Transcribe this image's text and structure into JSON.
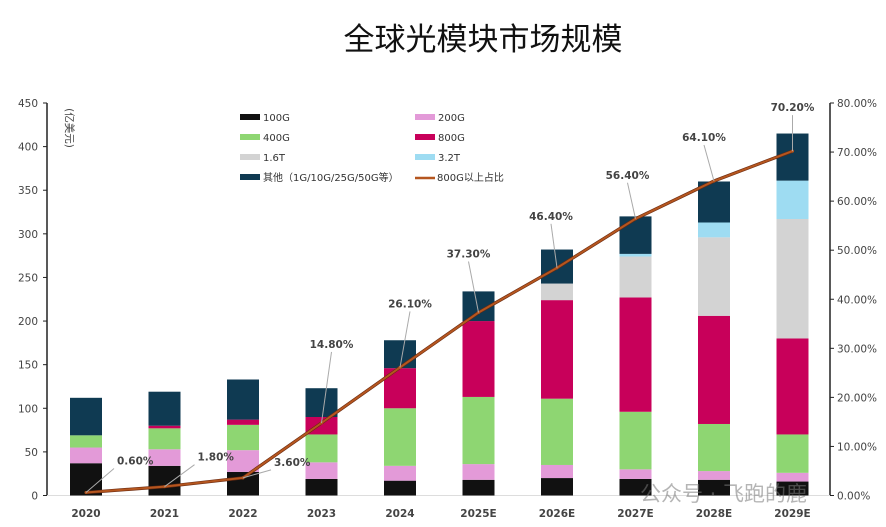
{
  "title": "全球光模块市场规模",
  "watermark": "公众号 · 飞跑的鹿",
  "chart_data": {
    "type": "bar",
    "stacked": true,
    "title": "全球光模块市场规模",
    "ylabel": "(亿美元)",
    "ylim": [
      0,
      450
    ],
    "yticks": [
      0,
      50,
      100,
      150,
      200,
      250,
      300,
      350,
      400,
      450
    ],
    "y2lim": [
      0,
      80
    ],
    "y2ticks": [
      "0.00%",
      "10.00%",
      "20.00%",
      "30.00%",
      "40.00%",
      "50.00%",
      "60.00%",
      "70.00%",
      "80.00%"
    ],
    "categories": [
      "2020",
      "2021",
      "2022",
      "2023",
      "2024",
      "2025E",
      "2026E",
      "2027E",
      "2028E",
      "2029E"
    ],
    "series": [
      {
        "name": "100G",
        "color": "#111111",
        "values": [
          37,
          34,
          27,
          19,
          17,
          18,
          20,
          19,
          18,
          16
        ]
      },
      {
        "name": "200G",
        "color": "#e39ad8",
        "values": [
          18,
          19,
          25,
          19,
          17,
          18,
          15,
          11,
          10,
          10
        ]
      },
      {
        "name": "400G",
        "color": "#8ed672",
        "values": [
          14,
          24,
          29,
          32,
          66,
          77,
          76,
          66,
          54,
          44
        ]
      },
      {
        "name": "800G",
        "color": "#c8005a",
        "values": [
          0,
          3,
          6,
          20,
          46,
          87,
          113,
          131,
          124,
          110
        ]
      },
      {
        "name": "1.6T",
        "color": "#d3d3d3",
        "values": [
          0,
          0,
          0,
          0,
          0,
          0,
          19,
          47,
          90,
          137
        ]
      },
      {
        "name": "3.2T",
        "color": "#9edcf2",
        "values": [
          0,
          0,
          0,
          0,
          0,
          0,
          0,
          3,
          17,
          44
        ]
      },
      {
        "name": "其他（1G/10G/25G/50G等）",
        "color": "#0f3a52",
        "values": [
          43,
          39,
          46,
          33,
          32,
          34,
          39,
          43,
          47,
          54
        ]
      }
    ],
    "line": {
      "name": "800G以上占比",
      "color": "#b5561f",
      "axis": "right",
      "values": [
        0.6,
        1.8,
        3.6,
        14.8,
        26.1,
        37.3,
        46.4,
        56.4,
        64.1,
        70.2
      ],
      "labels": [
        "0.60%",
        "1.80%",
        "3.60%",
        "14.80%",
        "26.10%",
        "37.30%",
        "46.40%",
        "56.40%",
        "64.10%",
        "70.20%"
      ]
    },
    "legend_position": "top-center"
  }
}
